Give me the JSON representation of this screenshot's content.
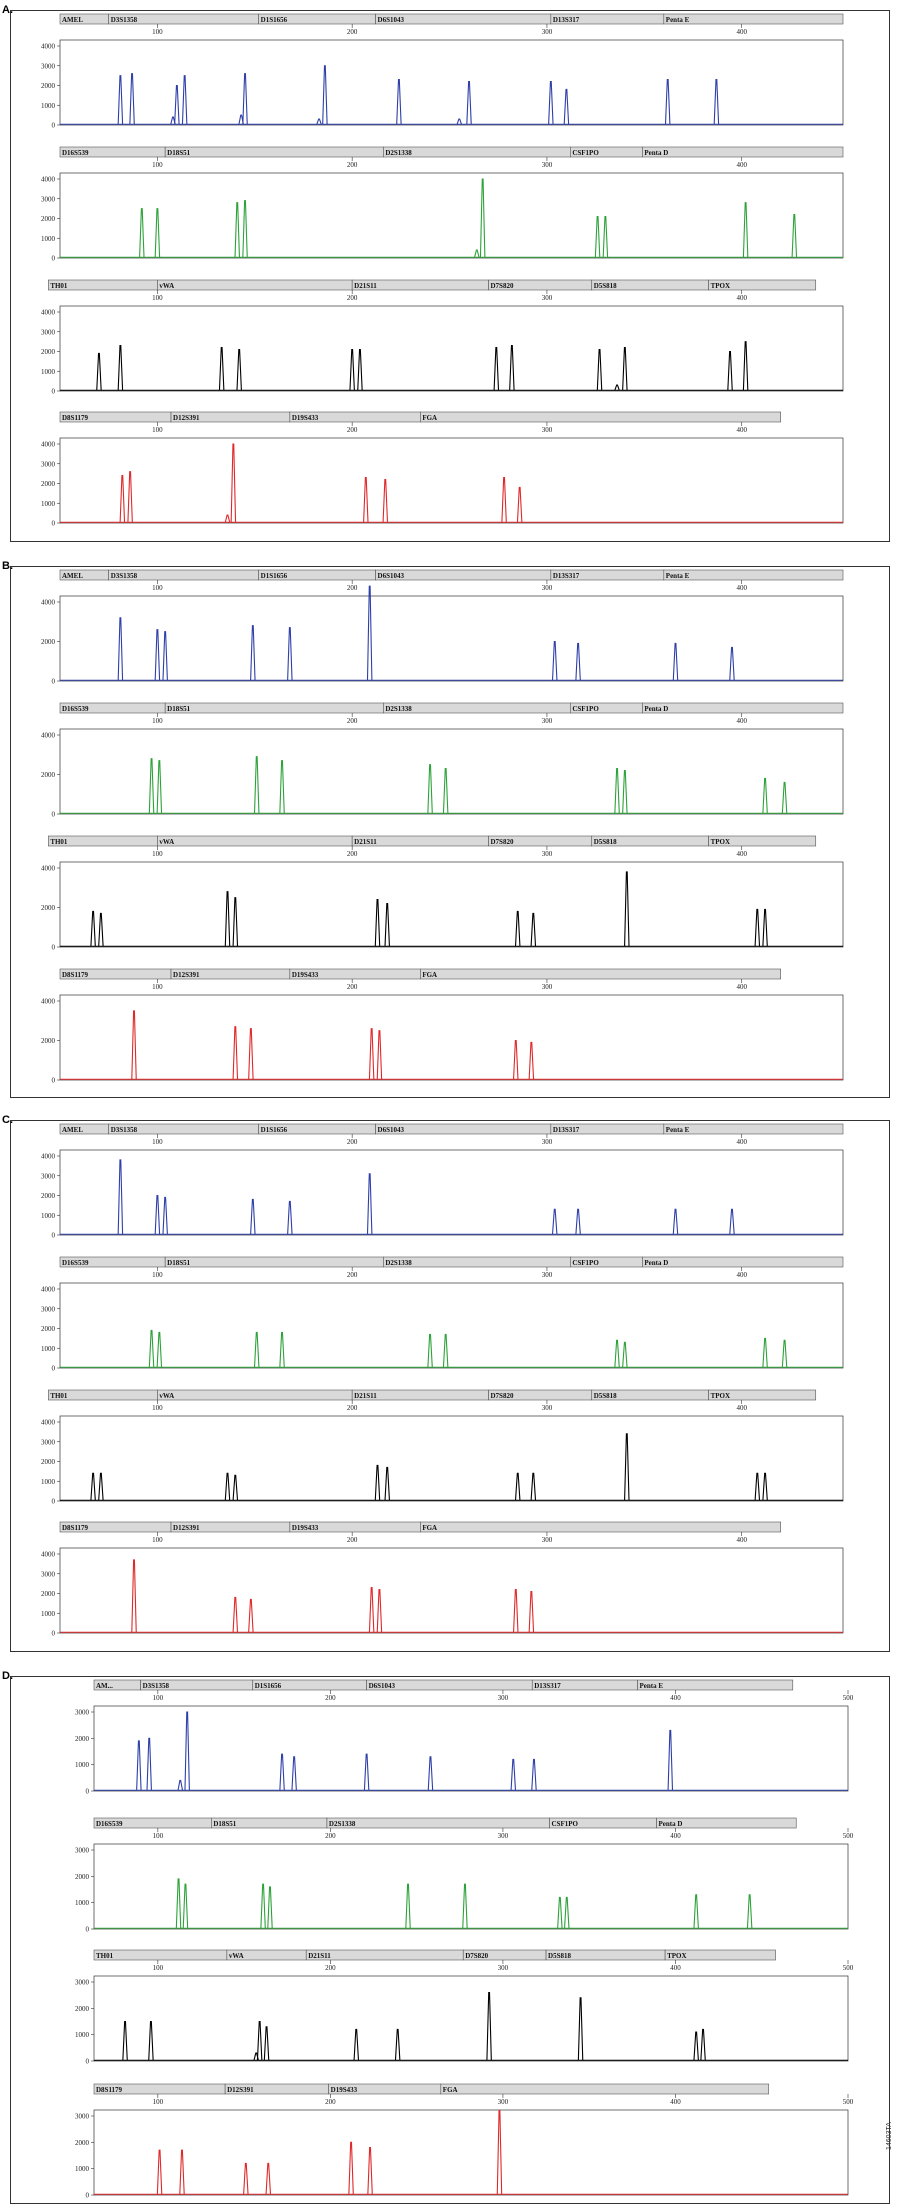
{
  "figure_id": "14603TA",
  "colors": {
    "blue": "#2f3fa8",
    "green": "#2ea23a",
    "black": "#000000",
    "red": "#e0282a",
    "bar_fill": "#d9d9d9",
    "bar_stroke": "#555555",
    "axis": "#333333"
  },
  "chart_data": [
    {
      "panel": "A.",
      "type": "line",
      "x_ticks": [
        100,
        200,
        300,
        400
      ],
      "channels": [
        {
          "color": "blue",
          "y_ticks": [
            0,
            1000,
            2000,
            3000,
            4000
          ],
          "markers": [
            "AMEL",
            "D3S1358",
            "D1S1656",
            "D6S1043",
            "D13S317",
            "Penta E"
          ],
          "peaks": [
            [
              81,
              2500
            ],
            [
              87,
              2600
            ],
            [
              108,
              400
            ],
            [
              110,
              2000
            ],
            [
              114,
              2500
            ],
            [
              143,
              500
            ],
            [
              145,
              2600
            ],
            [
              183,
              300
            ],
            [
              186,
              3000
            ],
            [
              224,
              2300
            ],
            [
              255,
              300
            ],
            [
              260,
              2200
            ],
            [
              302,
              2200
            ],
            [
              310,
              1800
            ],
            [
              362,
              2300
            ],
            [
              387,
              2300
            ]
          ]
        },
        {
          "color": "green",
          "y_ticks": [
            0,
            1000,
            2000,
            3000,
            4000
          ],
          "markers": [
            "D16S539",
            "D18S51",
            "D2S1338",
            "CSF1PO",
            "Penta D"
          ],
          "peaks": [
            [
              92,
              2500
            ],
            [
              100,
              2500
            ],
            [
              141,
              2800
            ],
            [
              145,
              2900
            ],
            [
              264,
              400
            ],
            [
              267,
              4000
            ],
            [
              326,
              2100
            ],
            [
              330,
              2100
            ],
            [
              402,
              2800
            ],
            [
              427,
              2200
            ]
          ]
        },
        {
          "color": "black",
          "y_ticks": [
            0,
            1000,
            2000,
            3000,
            4000
          ],
          "markers": [
            "TH01",
            "vWA",
            "D21S11",
            "D7S820",
            "D5S818",
            "TPOX"
          ],
          "peaks": [
            [
              70,
              1900
            ],
            [
              81,
              2300
            ],
            [
              133,
              2200
            ],
            [
              142,
              2100
            ],
            [
              200,
              2100
            ],
            [
              204,
              2100
            ],
            [
              274,
              2200
            ],
            [
              282,
              2300
            ],
            [
              327,
              2100
            ],
            [
              336,
              300
            ],
            [
              340,
              2200
            ],
            [
              394,
              2000
            ],
            [
              402,
              2500
            ]
          ]
        },
        {
          "color": "red",
          "y_ticks": [
            0,
            1000,
            2000,
            3000,
            4000
          ],
          "markers": [
            "D8S1179",
            "D12S391",
            "D19S433",
            "FGA"
          ],
          "peaks": [
            [
              82,
              2400
            ],
            [
              86,
              2600
            ],
            [
              136,
              400
            ],
            [
              139,
              4000
            ],
            [
              207,
              2300
            ],
            [
              217,
              2200
            ],
            [
              278,
              2300
            ],
            [
              286,
              1800
            ]
          ]
        }
      ]
    },
    {
      "panel": "B.",
      "type": "line",
      "x_ticks": [
        100,
        200,
        300,
        400
      ],
      "channels": [
        {
          "color": "blue",
          "y_ticks": [
            0,
            2000,
            4000
          ],
          "markers": [
            "AMEL",
            "D3S1358",
            "D1S1656",
            "D6S1043",
            "D13S317",
            "Penta E"
          ],
          "peaks": [
            [
              81,
              3200
            ],
            [
              100,
              2600
            ],
            [
              104,
              2500
            ],
            [
              149,
              2800
            ],
            [
              168,
              2700
            ],
            [
              209,
              4800
            ],
            [
              304,
              2000
            ],
            [
              316,
              1900
            ],
            [
              366,
              1900
            ],
            [
              395,
              1700
            ]
          ]
        },
        {
          "color": "green",
          "y_ticks": [
            0,
            2000,
            4000
          ],
          "markers": [
            "D16S539",
            "D18S51",
            "D2S1338",
            "CSF1PO",
            "Penta D"
          ],
          "peaks": [
            [
              97,
              2800
            ],
            [
              101,
              2700
            ],
            [
              151,
              2900
            ],
            [
              164,
              2700
            ],
            [
              240,
              2500
            ],
            [
              248,
              2300
            ],
            [
              336,
              2300
            ],
            [
              340,
              2200
            ],
            [
              412,
              1800
            ],
            [
              422,
              1600
            ]
          ]
        },
        {
          "color": "black",
          "y_ticks": [
            0,
            2000,
            4000
          ],
          "markers": [
            "TH01",
            "vWA",
            "D21S11",
            "D7S820",
            "D5S818",
            "TPOX"
          ],
          "peaks": [
            [
              67,
              1800
            ],
            [
              71,
              1700
            ],
            [
              136,
              2800
            ],
            [
              140,
              2500
            ],
            [
              213,
              2400
            ],
            [
              218,
              2200
            ],
            [
              285,
              1800
            ],
            [
              293,
              1700
            ],
            [
              341,
              3800
            ],
            [
              408,
              1900
            ],
            [
              412,
              1900
            ]
          ]
        },
        {
          "color": "red",
          "y_ticks": [
            0,
            2000,
            4000
          ],
          "markers": [
            "D8S1179",
            "D12S391",
            "D19S433",
            "FGA"
          ],
          "peaks": [
            [
              88,
              3500
            ],
            [
              140,
              2700
            ],
            [
              148,
              2600
            ],
            [
              210,
              2600
            ],
            [
              214,
              2500
            ],
            [
              284,
              2000
            ],
            [
              292,
              1900
            ]
          ]
        }
      ]
    },
    {
      "panel": "C.",
      "type": "line",
      "x_ticks": [
        100,
        200,
        300,
        400
      ],
      "channels": [
        {
          "color": "blue",
          "y_ticks": [
            0,
            1000,
            2000,
            3000,
            4000
          ],
          "markers": [
            "AMEL",
            "D3S1358",
            "D1S1656",
            "D6S1043",
            "D13S317",
            "Penta E"
          ],
          "peaks": [
            [
              81,
              3800
            ],
            [
              100,
              2000
            ],
            [
              104,
              1900
            ],
            [
              149,
              1800
            ],
            [
              168,
              1700
            ],
            [
              209,
              3100
            ],
            [
              304,
              1300
            ],
            [
              316,
              1300
            ],
            [
              366,
              1300
            ],
            [
              395,
              1300
            ]
          ]
        },
        {
          "color": "green",
          "y_ticks": [
            0,
            1000,
            2000,
            3000,
            4000
          ],
          "markers": [
            "D16S539",
            "D18S51",
            "D2S1338",
            "CSF1PO",
            "Penta D"
          ],
          "peaks": [
            [
              97,
              1900
            ],
            [
              101,
              1800
            ],
            [
              151,
              1800
            ],
            [
              164,
              1800
            ],
            [
              240,
              1700
            ],
            [
              248,
              1700
            ],
            [
              336,
              1400
            ],
            [
              340,
              1300
            ],
            [
              412,
              1500
            ],
            [
              422,
              1400
            ]
          ]
        },
        {
          "color": "black",
          "y_ticks": [
            0,
            1000,
            2000,
            3000,
            4000
          ],
          "markers": [
            "TH01",
            "vWA",
            "D21S11",
            "D7S820",
            "D5S818",
            "TPOX"
          ],
          "peaks": [
            [
              67,
              1400
            ],
            [
              71,
              1400
            ],
            [
              136,
              1400
            ],
            [
              140,
              1300
            ],
            [
              213,
              1800
            ],
            [
              218,
              1700
            ],
            [
              285,
              1400
            ],
            [
              293,
              1400
            ],
            [
              341,
              3400
            ],
            [
              408,
              1400
            ],
            [
              412,
              1400
            ]
          ]
        },
        {
          "color": "red",
          "y_ticks": [
            0,
            1000,
            2000,
            3000,
            4000
          ],
          "markers": [
            "D8S1179",
            "D12S391",
            "D19S433",
            "FGA"
          ],
          "peaks": [
            [
              88,
              3700
            ],
            [
              140,
              1800
            ],
            [
              148,
              1700
            ],
            [
              210,
              2300
            ],
            [
              214,
              2200
            ],
            [
              284,
              2200
            ],
            [
              292,
              2100
            ]
          ]
        }
      ]
    },
    {
      "panel": "D.",
      "type": "line",
      "x_ticks": [
        100,
        200,
        300,
        400,
        500
      ],
      "channels": [
        {
          "color": "blue",
          "y_ticks": [
            0,
            1000,
            2000,
            3000
          ],
          "markers": [
            "AM...",
            "D3S1358",
            "D1S1656",
            "D6S1043",
            "D13S317",
            "Penta E"
          ],
          "peaks": [
            [
              89,
              1900
            ],
            [
              95,
              2000
            ],
            [
              113,
              400
            ],
            [
              117,
              3000
            ],
            [
              172,
              1400
            ],
            [
              179,
              1300
            ],
            [
              221,
              1400
            ],
            [
              258,
              1300
            ],
            [
              306,
              1200
            ],
            [
              318,
              1200
            ],
            [
              397,
              2300
            ]
          ]
        },
        {
          "color": "green",
          "y_ticks": [
            0,
            1000,
            2000,
            3000
          ],
          "markers": [
            "D16S539",
            "D18S51",
            "D2S1338",
            "CSF1PO",
            "Penta D"
          ],
          "peaks": [
            [
              112,
              1900
            ],
            [
              116,
              1700
            ],
            [
              161,
              1700
            ],
            [
              165,
              1600
            ],
            [
              245,
              1700
            ],
            [
              278,
              1700
            ],
            [
              333,
              1200
            ],
            [
              337,
              1200
            ],
            [
              412,
              1300
            ],
            [
              443,
              1300
            ]
          ]
        },
        {
          "color": "black",
          "y_ticks": [
            0,
            1000,
            2000,
            3000
          ],
          "markers": [
            "TH01",
            "vWA",
            "D21S11",
            "D7S820",
            "D5S818",
            "TPOX"
          ],
          "peaks": [
            [
              81,
              1500
            ],
            [
              96,
              1500
            ],
            [
              157,
              300
            ],
            [
              159,
              1500
            ],
            [
              163,
              1300
            ],
            [
              215,
              1200
            ],
            [
              239,
              1200
            ],
            [
              292,
              2600
            ],
            [
              345,
              2400
            ],
            [
              412,
              1100
            ],
            [
              416,
              1200
            ]
          ]
        },
        {
          "color": "red",
          "y_ticks": [
            0,
            1000,
            2000,
            3000
          ],
          "markers": [
            "D8S1179",
            "D12S391",
            "D19S433",
            "FGA"
          ],
          "peaks": [
            [
              101,
              1700
            ],
            [
              114,
              1700
            ],
            [
              151,
              1200
            ],
            [
              164,
              1200
            ],
            [
              212,
              2000
            ],
            [
              223,
              1800
            ],
            [
              298,
              3200
            ]
          ]
        }
      ]
    }
  ]
}
